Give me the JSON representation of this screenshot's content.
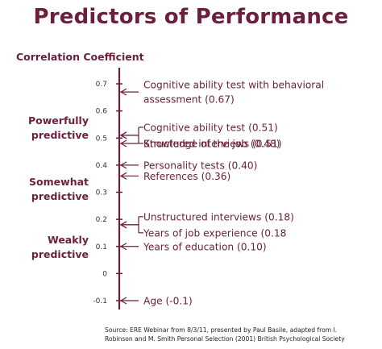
{
  "chart_data": {
    "type": "annotated-scale",
    "title": "Predictors of Performance",
    "ylabel": "Correlation Coefficient",
    "ylim": [
      -0.1,
      0.7
    ],
    "yticks": [
      0.7,
      0.6,
      0.5,
      0.4,
      0.3,
      0.2,
      0.1,
      0,
      -0.1
    ],
    "ytick_labels": [
      "0.7",
      "0.6",
      "0.5",
      "0.4",
      "0.3",
      "0.2",
      "0.1",
      "0",
      "-0.1"
    ],
    "zones": [
      {
        "lines": [
          "Powerfully",
          "predictive"
        ],
        "center": 0.535
      },
      {
        "lines": [
          "Somewhat",
          "predictive"
        ],
        "center": 0.31
      },
      {
        "lines": [
          "Weakly",
          "predictive"
        ],
        "center": 0.095
      }
    ],
    "predictors": [
      {
        "lines": [
          "Cognitive ability test with behavioral",
          "assessment (0.67)"
        ],
        "value": 0.67,
        "bracket": null
      },
      {
        "lines": [
          "Cognitive ability test (0.51)"
        ],
        "value": 0.51,
        "bracket": "top"
      },
      {
        "lines": [
          "Structured interviews (0.51)"
        ],
        "value": 0.51,
        "bracket": "bottom"
      },
      {
        "lines": [
          "Knowledge of the job (0.48)"
        ],
        "value": 0.48,
        "bracket": null
      },
      {
        "lines": [
          "Personality tests (0.40)"
        ],
        "value": 0.4,
        "bracket": null
      },
      {
        "lines": [
          "References (0.36)"
        ],
        "value": 0.36,
        "bracket": null
      },
      {
        "lines": [
          "Unstructured interviews (0.18)"
        ],
        "value": 0.18,
        "bracket": "top"
      },
      {
        "lines": [
          "Years of job experience (0.18"
        ],
        "value": 0.18,
        "bracket": "bottom"
      },
      {
        "lines": [
          "Years of education (0.10)"
        ],
        "value": 0.1,
        "bracket": null
      },
      {
        "lines": [
          "Age (-0.1)"
        ],
        "value": -0.1,
        "bracket": null
      }
    ],
    "source_lines": [
      "Source: ERE Webinar from 8/3/11, presented by Paul Basile, adapted from I.",
      "Robinson and M. Smith Personal Selection (2001) British Psychological Society"
    ],
    "colors": {
      "accent": "#6b1f3c",
      "tick_text": "#333333",
      "source_text": "#222222"
    }
  }
}
